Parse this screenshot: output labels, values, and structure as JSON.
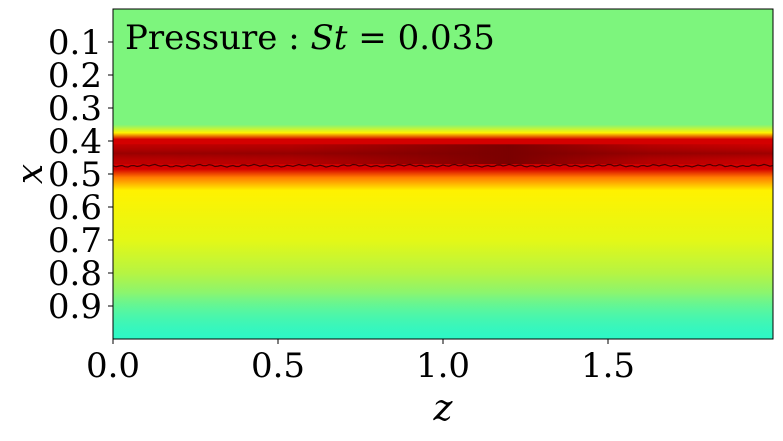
{
  "chart_data": {
    "type": "heatmap",
    "title_prefix": "Pressure : ",
    "title_var": "St",
    "title_eq": " = 0.035",
    "xlabel": "z",
    "ylabel": "x",
    "xlim": [
      0.0,
      2.0
    ],
    "ylim": [
      0.0,
      1.0
    ],
    "y_inverted": true,
    "xticks": [
      0.0,
      0.5,
      1.0,
      1.5
    ],
    "xtick_labels": [
      "0.0",
      "0.5",
      "1.0",
      "1.5"
    ],
    "yticks": [
      0.1,
      0.2,
      0.3,
      0.4,
      0.5,
      0.6,
      0.7,
      0.8,
      0.9
    ],
    "ytick_labels": [
      "0.1",
      "0.2",
      "0.3",
      "0.4",
      "0.5",
      "0.6",
      "0.7",
      "0.8",
      "0.9"
    ],
    "colormap": "jet",
    "band_center_x": 0.44,
    "band_peak_z": 1.3,
    "lower_line_x": 0.475,
    "colors": {
      "background": "#7df57d",
      "peak": "#7a0000",
      "red": "#d40000",
      "yellow": "#fff200",
      "cyan": "#2df7c6",
      "line": "#1a0000"
    }
  }
}
